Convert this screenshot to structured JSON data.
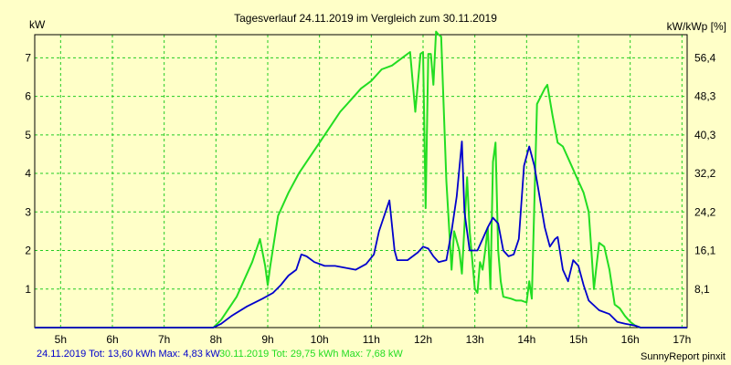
{
  "chart_data": {
    "type": "line",
    "title": "Tagesverlauf 24.11.2019 im Vergleich zum 30.11.2019",
    "ylabel_left": "kW",
    "ylabel_right": "kW/kWp [%]",
    "xlim": [
      4.5,
      17.1
    ],
    "ylim": [
      0,
      7.6
    ],
    "x_ticks": [
      {
        "value": 5,
        "label": "5h"
      },
      {
        "value": 6,
        "label": "6h"
      },
      {
        "value": 7,
        "label": "7h"
      },
      {
        "value": 8,
        "label": "8h"
      },
      {
        "value": 9,
        "label": "9h"
      },
      {
        "value": 10,
        "label": "10h"
      },
      {
        "value": 11,
        "label": "11h"
      },
      {
        "value": 12,
        "label": "12h"
      },
      {
        "value": 13,
        "label": "13h"
      },
      {
        "value": 14,
        "label": "14h"
      },
      {
        "value": 15,
        "label": "15h"
      },
      {
        "value": 16,
        "label": "16h"
      },
      {
        "value": 17,
        "label": "17h"
      }
    ],
    "y_ticks_left": [
      {
        "value": 1,
        "label": "1"
      },
      {
        "value": 2,
        "label": "2"
      },
      {
        "value": 3,
        "label": "3"
      },
      {
        "value": 4,
        "label": "4"
      },
      {
        "value": 5,
        "label": "5"
      },
      {
        "value": 6,
        "label": "6"
      },
      {
        "value": 7,
        "label": "7"
      }
    ],
    "y_ticks_right": [
      {
        "value": 1,
        "label": "8,1"
      },
      {
        "value": 2,
        "label": "16,1"
      },
      {
        "value": 3,
        "label": "24,2"
      },
      {
        "value": 4,
        "label": "32,2"
      },
      {
        "value": 5,
        "label": "40,3"
      },
      {
        "value": 6,
        "label": "48,3"
      },
      {
        "value": 7,
        "label": "56,4"
      }
    ],
    "grid": true,
    "series": [
      {
        "name": "30.11.2019",
        "color": "#22dd22",
        "points": [
          [
            4.5,
            0
          ],
          [
            7.95,
            0
          ],
          [
            8.1,
            0.2
          ],
          [
            8.4,
            0.8
          ],
          [
            8.7,
            1.7
          ],
          [
            8.85,
            2.3
          ],
          [
            8.95,
            1.6
          ],
          [
            9.0,
            1.1
          ],
          [
            9.05,
            1.6
          ],
          [
            9.2,
            2.9
          ],
          [
            9.4,
            3.5
          ],
          [
            9.6,
            4.0
          ],
          [
            9.8,
            4.4
          ],
          [
            10.0,
            4.8
          ],
          [
            10.2,
            5.2
          ],
          [
            10.4,
            5.6
          ],
          [
            10.6,
            5.9
          ],
          [
            10.8,
            6.2
          ],
          [
            11.0,
            6.4
          ],
          [
            11.2,
            6.7
          ],
          [
            11.4,
            6.8
          ],
          [
            11.6,
            7.0
          ],
          [
            11.75,
            7.15
          ],
          [
            11.85,
            5.6
          ],
          [
            11.95,
            7.1
          ],
          [
            12.0,
            7.15
          ],
          [
            12.05,
            3.1
          ],
          [
            12.1,
            7.1
          ],
          [
            12.15,
            7.1
          ],
          [
            12.2,
            6.3
          ],
          [
            12.25,
            7.68
          ],
          [
            12.3,
            7.6
          ],
          [
            12.35,
            7.55
          ],
          [
            12.45,
            3.8
          ],
          [
            12.55,
            1.5
          ],
          [
            12.6,
            2.5
          ],
          [
            12.7,
            2.0
          ],
          [
            12.75,
            1.4
          ],
          [
            12.85,
            3.9
          ],
          [
            12.9,
            2.5
          ],
          [
            13.0,
            1.0
          ],
          [
            13.05,
            0.9
          ],
          [
            13.1,
            1.7
          ],
          [
            13.15,
            1.5
          ],
          [
            13.2,
            2.0
          ],
          [
            13.25,
            2.6
          ],
          [
            13.3,
            1.0
          ],
          [
            13.35,
            4.3
          ],
          [
            13.4,
            4.8
          ],
          [
            13.45,
            2.0
          ],
          [
            13.5,
            1.2
          ],
          [
            13.55,
            0.8
          ],
          [
            13.7,
            0.75
          ],
          [
            13.8,
            0.7
          ],
          [
            13.9,
            0.7
          ],
          [
            14.0,
            0.65
          ],
          [
            14.05,
            1.2
          ],
          [
            14.1,
            0.75
          ],
          [
            14.2,
            5.8
          ],
          [
            14.35,
            6.2
          ],
          [
            14.4,
            6.3
          ],
          [
            14.5,
            5.5
          ],
          [
            14.6,
            4.8
          ],
          [
            14.7,
            4.7
          ],
          [
            14.8,
            4.4
          ],
          [
            15.0,
            3.8
          ],
          [
            15.1,
            3.5
          ],
          [
            15.2,
            3.0
          ],
          [
            15.25,
            2.0
          ],
          [
            15.3,
            1.0
          ],
          [
            15.35,
            1.6
          ],
          [
            15.4,
            2.2
          ],
          [
            15.5,
            2.1
          ],
          [
            15.6,
            1.5
          ],
          [
            15.7,
            0.6
          ],
          [
            15.8,
            0.5
          ],
          [
            15.9,
            0.3
          ],
          [
            16.0,
            0.15
          ],
          [
            16.1,
            0.05
          ],
          [
            16.2,
            0
          ],
          [
            17.1,
            0
          ]
        ]
      },
      {
        "name": "24.11.2019",
        "color": "#0000cc",
        "points": [
          [
            4.5,
            0
          ],
          [
            7.95,
            0
          ],
          [
            8.1,
            0.1
          ],
          [
            8.3,
            0.3
          ],
          [
            8.6,
            0.55
          ],
          [
            8.9,
            0.75
          ],
          [
            9.1,
            0.9
          ],
          [
            9.25,
            1.1
          ],
          [
            9.4,
            1.35
          ],
          [
            9.55,
            1.5
          ],
          [
            9.65,
            1.9
          ],
          [
            9.75,
            1.85
          ],
          [
            9.9,
            1.7
          ],
          [
            10.1,
            1.6
          ],
          [
            10.3,
            1.6
          ],
          [
            10.5,
            1.55
          ],
          [
            10.7,
            1.5
          ],
          [
            10.9,
            1.65
          ],
          [
            11.05,
            1.9
          ],
          [
            11.15,
            2.5
          ],
          [
            11.3,
            3.1
          ],
          [
            11.35,
            3.3
          ],
          [
            11.45,
            2.0
          ],
          [
            11.5,
            1.75
          ],
          [
            11.7,
            1.75
          ],
          [
            11.9,
            1.95
          ],
          [
            12.0,
            2.1
          ],
          [
            12.1,
            2.05
          ],
          [
            12.2,
            1.85
          ],
          [
            12.3,
            1.7
          ],
          [
            12.45,
            1.75
          ],
          [
            12.55,
            2.5
          ],
          [
            12.65,
            3.4
          ],
          [
            12.75,
            4.83
          ],
          [
            12.8,
            3.0
          ],
          [
            12.9,
            2.0
          ],
          [
            13.05,
            2.0
          ],
          [
            13.15,
            2.3
          ],
          [
            13.25,
            2.6
          ],
          [
            13.35,
            2.85
          ],
          [
            13.45,
            2.7
          ],
          [
            13.55,
            2.0
          ],
          [
            13.65,
            1.85
          ],
          [
            13.75,
            1.9
          ],
          [
            13.85,
            2.3
          ],
          [
            13.95,
            4.2
          ],
          [
            14.05,
            4.7
          ],
          [
            14.15,
            4.2
          ],
          [
            14.25,
            3.4
          ],
          [
            14.35,
            2.6
          ],
          [
            14.45,
            2.1
          ],
          [
            14.55,
            2.3
          ],
          [
            14.6,
            2.35
          ],
          [
            14.7,
            1.5
          ],
          [
            14.8,
            1.2
          ],
          [
            14.9,
            1.75
          ],
          [
            15.0,
            1.6
          ],
          [
            15.1,
            1.1
          ],
          [
            15.2,
            0.7
          ],
          [
            15.4,
            0.45
          ],
          [
            15.6,
            0.35
          ],
          [
            15.75,
            0.15
          ],
          [
            15.9,
            0.1
          ],
          [
            16.1,
            0.05
          ],
          [
            16.2,
            0
          ],
          [
            17.1,
            0
          ]
        ]
      }
    ]
  },
  "footer": {
    "series1_text": "24.11.2019 Tot: 13,60 kWh Max: 4,83 kW",
    "series1_color": "#0000cc",
    "series2_text": "30.11.2019 Tot: 29,75 kWh Max: 7,68 kW",
    "series2_color": "#22dd22",
    "credit": "SunnyReport pinxit"
  }
}
